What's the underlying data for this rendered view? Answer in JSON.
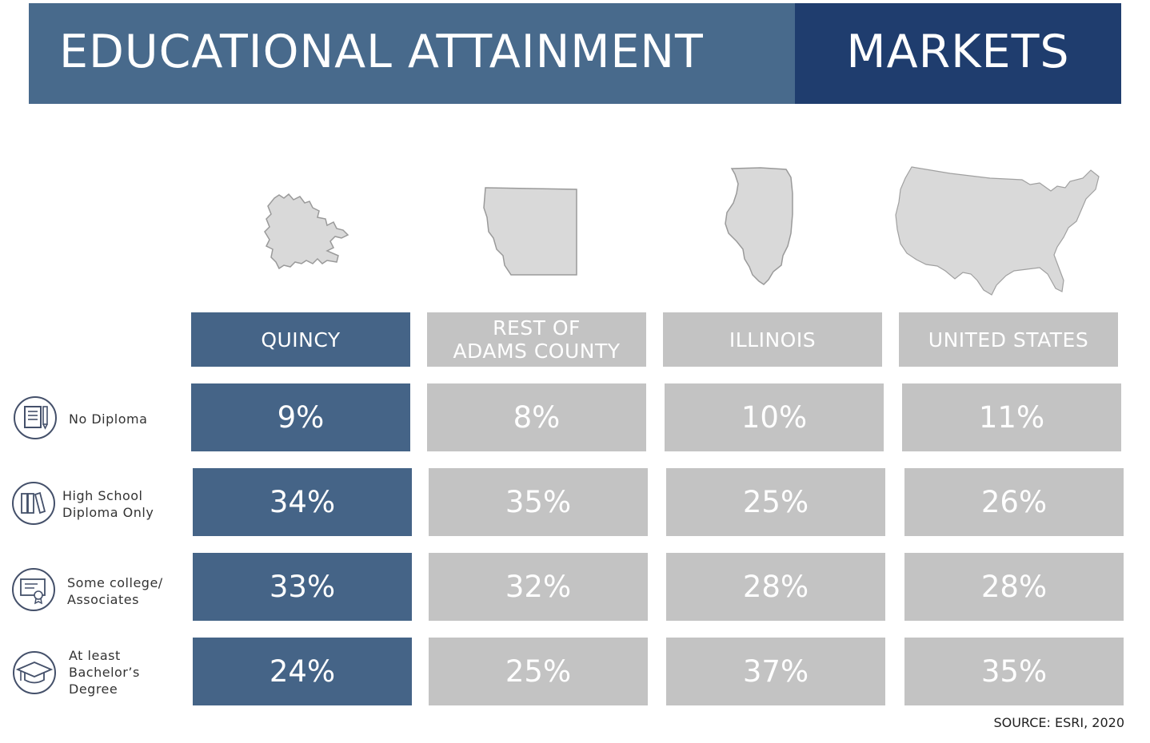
{
  "header": {
    "title": "EDUCATIONAL ATTAINMENT",
    "markets": "MARKETS"
  },
  "colors": {
    "header_left": "#486a8c",
    "header_right": "#1f3d6e",
    "quincy": "#456487",
    "other_markets": "#c3c3c3",
    "map_fill": "#d9d9d9"
  },
  "columns": [
    {
      "label_line1": "QUINCY",
      "label_line2": "",
      "map_icon": "quincy-map-icon"
    },
    {
      "label_line1": "REST OF",
      "label_line2": "ADAMS COUNTY",
      "map_icon": "adams-county-map-icon"
    },
    {
      "label_line1": "ILLINOIS",
      "label_line2": "",
      "map_icon": "illinois-map-icon"
    },
    {
      "label_line1": "UNITED STATES",
      "label_line2": "",
      "map_icon": "united-states-map-icon"
    }
  ],
  "rows": [
    {
      "label_line1": "No Diploma",
      "label_line2": "",
      "label_line3": "",
      "icon": "document-pencil-icon",
      "values": [
        "9%",
        "8%",
        "10%",
        "11%"
      ]
    },
    {
      "label_line1": "High School",
      "label_line2": "Diploma Only",
      "label_line3": "",
      "icon": "books-icon",
      "values": [
        "34%",
        "35%",
        "25%",
        "26%"
      ]
    },
    {
      "label_line1": "Some college/",
      "label_line2": "Associates",
      "label_line3": "",
      "icon": "certificate-icon",
      "values": [
        "33%",
        "32%",
        "28%",
        "28%"
      ]
    },
    {
      "label_line1": "At least",
      "label_line2": "Bachelor’s",
      "label_line3": "Degree",
      "icon": "graduation-cap-icon",
      "values": [
        "24%",
        "25%",
        "37%",
        "35%"
      ]
    }
  ],
  "source": "SOURCE: ESRI, 2020"
}
